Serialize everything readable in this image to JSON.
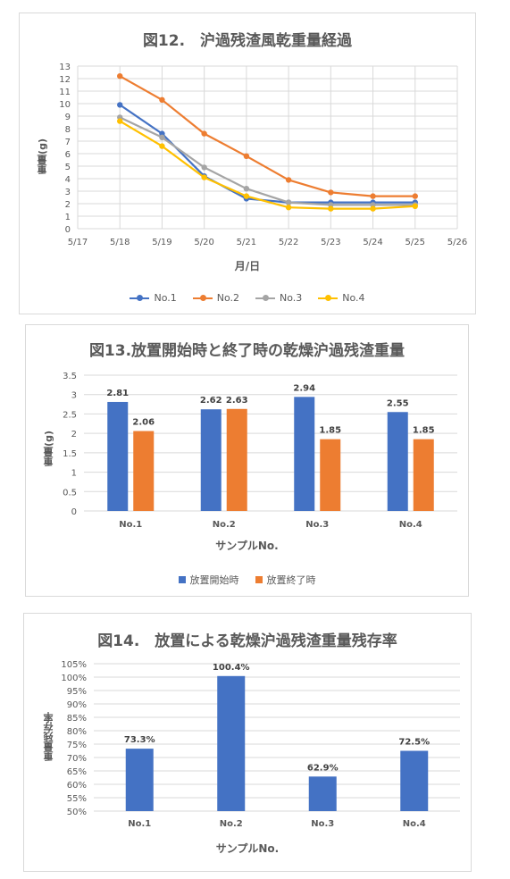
{
  "chart_data": [
    {
      "type": "line",
      "title": "図12.　沪過残渣風乾重量経過",
      "xlabel": "月/日",
      "ylabel": "重量(g)",
      "x_ticks": [
        "5/17",
        "5/18",
        "5/19",
        "5/20",
        "5/21",
        "5/22",
        "5/23",
        "5/24",
        "5/25",
        "5/26"
      ],
      "x": [
        "5/18",
        "5/19",
        "5/20",
        "5/21",
        "5/22",
        "5/23",
        "5/24",
        "5/25"
      ],
      "y_ticks": [
        "0",
        "1",
        "2",
        "3",
        "4",
        "5",
        "6",
        "7",
        "8",
        "9",
        "10",
        "11",
        "12",
        "13"
      ],
      "ylim": [
        0,
        13
      ],
      "grid": true,
      "legend_position": "bottom",
      "series": [
        {
          "name": "No.1",
          "color": "#4472c4",
          "values": [
            9.9,
            7.6,
            4.2,
            2.4,
            2.1,
            2.1,
            2.1,
            2.1
          ]
        },
        {
          "name": "No.2",
          "color": "#ed7d31",
          "values": [
            12.2,
            10.3,
            7.6,
            5.8,
            3.9,
            2.9,
            2.6,
            2.6
          ]
        },
        {
          "name": "No.3",
          "color": "#a5a5a5",
          "values": [
            8.9,
            7.3,
            4.9,
            3.2,
            2.1,
            1.9,
            1.9,
            1.9
          ]
        },
        {
          "name": "No.4",
          "color": "#ffc000",
          "values": [
            8.6,
            6.6,
            4.1,
            2.6,
            1.7,
            1.6,
            1.6,
            1.8
          ]
        }
      ]
    },
    {
      "type": "bar",
      "title": "図13.放置開始時と終了時の乾燥沪過残渣重量",
      "xlabel": "サンプルNo.",
      "ylabel": "重量(g)",
      "categories": [
        "No.1",
        "No.2",
        "No.3",
        "No.4"
      ],
      "y_ticks": [
        "0",
        "0.5",
        "1",
        "1.5",
        "2",
        "2.5",
        "3",
        "3.5"
      ],
      "ylim": [
        0,
        3.5
      ],
      "grid": true,
      "legend_position": "bottom",
      "series": [
        {
          "name": "放置開始時",
          "color": "#4472c4",
          "values": [
            2.81,
            2.62,
            2.94,
            2.55
          ],
          "labels": [
            "2.81",
            "2.62",
            "2.94",
            "2.55"
          ]
        },
        {
          "name": "放置終了時",
          "color": "#ed7d31",
          "values": [
            2.06,
            2.63,
            1.85,
            1.85
          ],
          "labels": [
            "2.06",
            "2.63",
            "1.85",
            "1.85"
          ]
        }
      ]
    },
    {
      "type": "bar",
      "title": "図14.　放置による乾燥沪過残渣重量残存率",
      "xlabel": "サンプルNo.",
      "ylabel": "重量残存率",
      "categories": [
        "No.1",
        "No.2",
        "No.3",
        "No.4"
      ],
      "y_ticks": [
        "50%",
        "55%",
        "60%",
        "65%",
        "70%",
        "75%",
        "80%",
        "85%",
        "90%",
        "95%",
        "100%",
        "105%"
      ],
      "ylim": [
        50,
        105
      ],
      "grid": true,
      "series": [
        {
          "color": "#4472c4",
          "values": [
            73.3,
            100.4,
            62.9,
            72.5
          ],
          "labels": [
            "73.3%",
            "100.4%",
            "62.9%",
            "72.5%"
          ]
        }
      ]
    }
  ]
}
